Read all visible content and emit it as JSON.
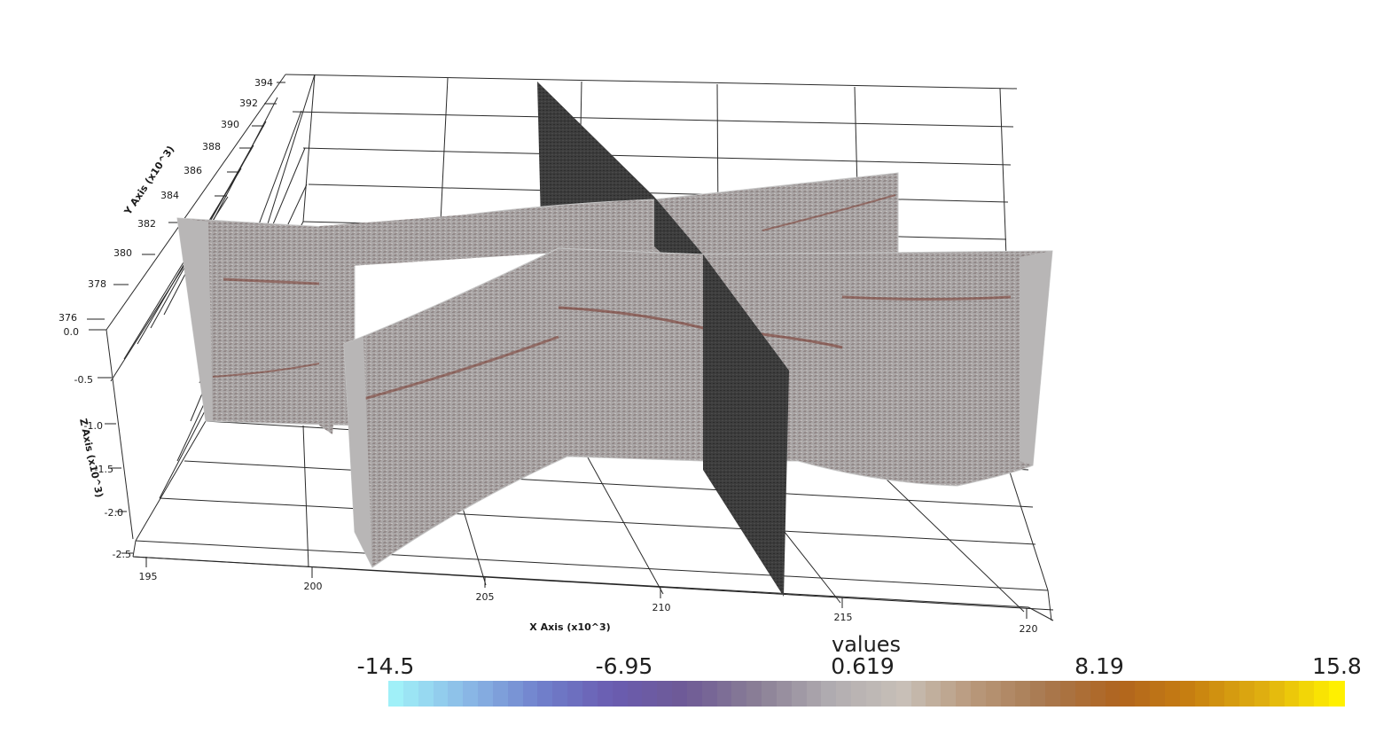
{
  "axes": {
    "x_title": "X Axis (x10^3)",
    "y_title": "Y Axis (x10^3)",
    "z_title": "Z Axis (x10^3)",
    "x_ticks": [
      "195",
      "200",
      "205",
      "210",
      "215",
      "220"
    ],
    "y_ticks": [
      "394",
      "392",
      "390",
      "388",
      "386",
      "384",
      "382",
      "380",
      "378",
      "376"
    ],
    "z_ticks": [
      "0.0",
      "-0.5",
      "-1.0",
      "-1.5",
      "-2.0",
      "-2.5"
    ]
  },
  "legend": {
    "title": "values",
    "tick_labels": [
      "-14.5",
      "-6.95",
      "0.619",
      "8.19",
      "15.8"
    ],
    "min": -14.5,
    "max": 15.8,
    "colormap": [
      "#a0f0f8",
      "#8ab8e6",
      "#7080cc",
      "#6a5cb0",
      "#6e5a96",
      "#8a7f96",
      "#b0acb0",
      "#c8c0b8",
      "#b8987a",
      "#a8784e",
      "#b0641e",
      "#c88010",
      "#e0b010",
      "#fff000"
    ]
  },
  "colors": {
    "section_fill": "#a9a5a6",
    "section_edge": "#c8c8c8",
    "dark_section": "#3a3a3a",
    "reflector": "#7a3a30"
  }
}
